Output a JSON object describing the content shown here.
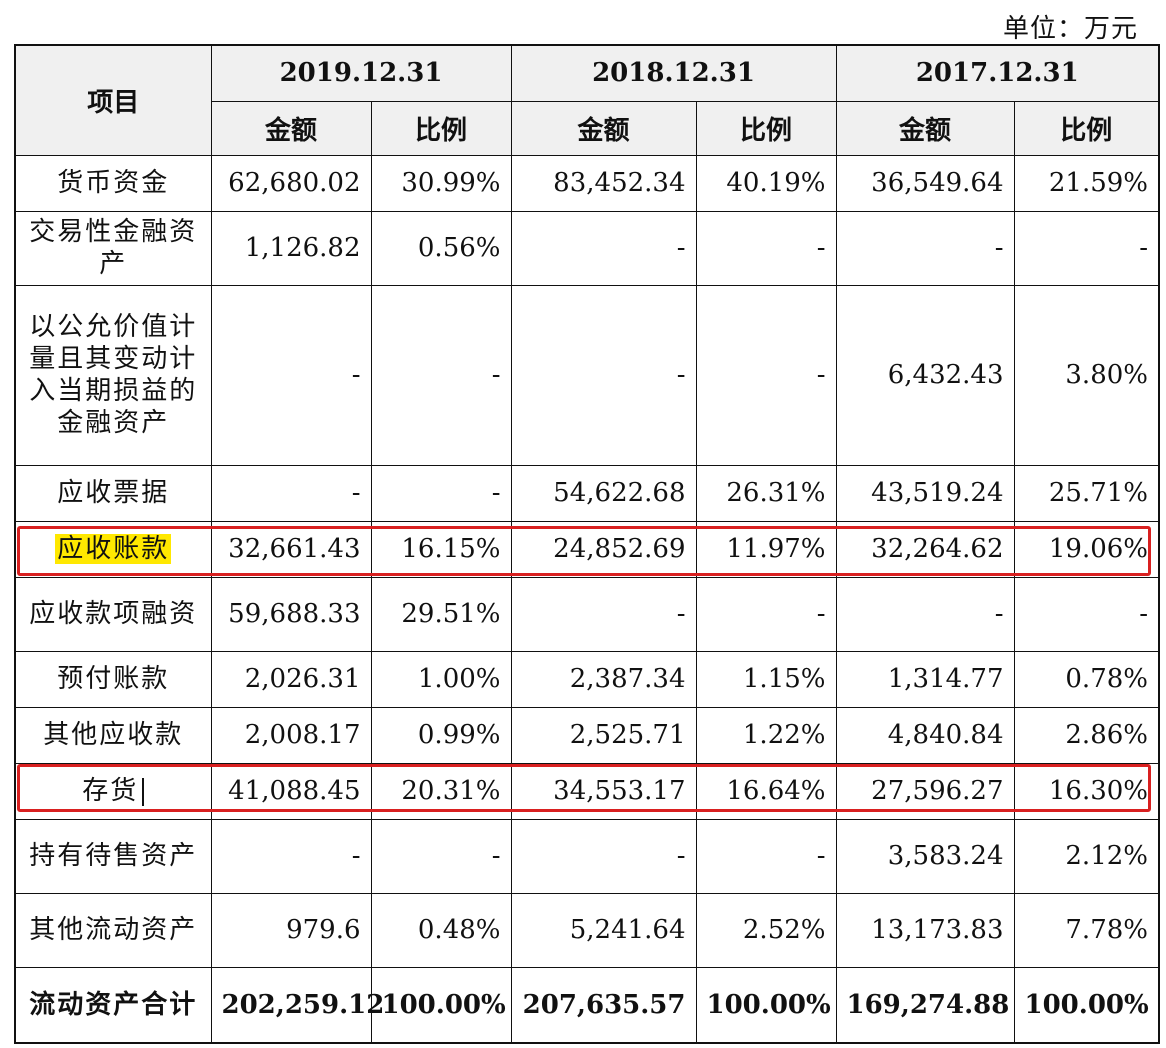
{
  "unit_label": "单位：万元",
  "header": {
    "item": "项目",
    "years": [
      "2019.12.31",
      "2018.12.31",
      "2017.12.31"
    ],
    "amount": "金额",
    "ratio": "比例"
  },
  "rows": [
    {
      "name": "货币资金",
      "values": [
        "62,680.02",
        "30.99%",
        "83,452.34",
        "40.19%",
        "36,549.64",
        "21.59%"
      ]
    },
    {
      "name": "交易性金融资产",
      "values": [
        "1,126.82",
        "0.56%",
        "-",
        "-",
        "-",
        "-"
      ]
    },
    {
      "name": "以公允价值计量且其变动计入当期损益的金融资产",
      "values": [
        "-",
        "-",
        "-",
        "-",
        "6,432.43",
        "3.80%"
      ]
    },
    {
      "name": "应收票据",
      "values": [
        "-",
        "-",
        "54,622.68",
        "26.31%",
        "43,519.24",
        "25.71%"
      ]
    },
    {
      "name": "应收账款",
      "values": [
        "32,661.43",
        "16.15%",
        "24,852.69",
        "11.97%",
        "32,264.62",
        "19.06%"
      ]
    },
    {
      "name": "应收款项融资",
      "values": [
        "59,688.33",
        "29.51%",
        "-",
        "-",
        "-",
        "-"
      ]
    },
    {
      "name": "预付账款",
      "values": [
        "2,026.31",
        "1.00%",
        "2,387.34",
        "1.15%",
        "1,314.77",
        "0.78%"
      ]
    },
    {
      "name": "其他应收款",
      "values": [
        "2,008.17",
        "0.99%",
        "2,525.71",
        "1.22%",
        "4,840.84",
        "2.86%"
      ]
    },
    {
      "name": "存货",
      "values": [
        "41,088.45",
        "20.31%",
        "34,553.17",
        "16.64%",
        "27,596.27",
        "16.30%"
      ]
    },
    {
      "name": "持有待售资产",
      "values": [
        "-",
        "-",
        "-",
        "-",
        "3,583.24",
        "2.12%"
      ]
    },
    {
      "name": "其他流动资产",
      "values": [
        "979.6",
        "0.48%",
        "5,241.64",
        "2.52%",
        "13,173.83",
        "7.78%"
      ]
    },
    {
      "name": "流动资产合计",
      "values": [
        "202,259.12",
        "100.00%",
        "207,635.57",
        "100.00%",
        "169,274.88",
        "100.00%"
      ]
    }
  ],
  "highlight_color": "#ffe800",
  "box_color": "#d92020"
}
